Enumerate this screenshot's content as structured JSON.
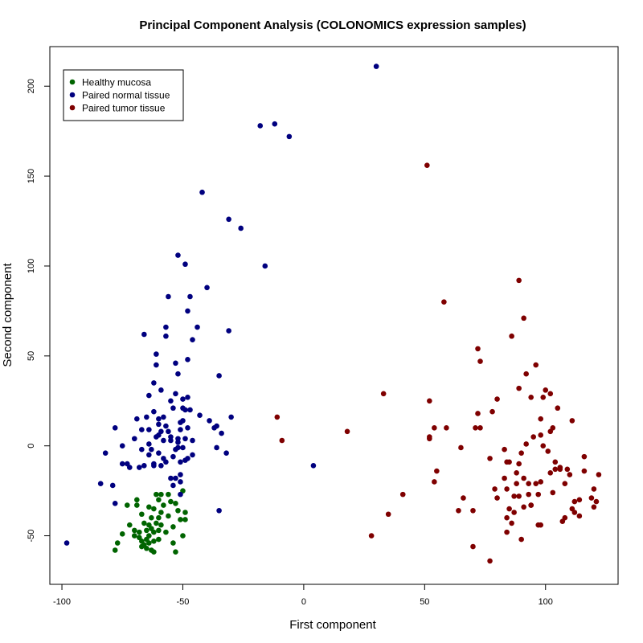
{
  "chart_data": {
    "type": "scatter",
    "title": "Principal Component Analysis (COLONOMICS expression samples)",
    "xlabel": "First component",
    "ylabel": "Second component",
    "xlim": [
      -105,
      130
    ],
    "ylim": [
      -77,
      222
    ],
    "xticks": [
      -100,
      -50,
      0,
      50,
      100
    ],
    "yticks": [
      -50,
      0,
      50,
      100,
      150,
      200
    ],
    "grid": false,
    "legend_position": "top-left",
    "series": [
      {
        "name": "Healthy mucosa",
        "color": "#006400",
        "points": [
          [
            -78,
            -58
          ],
          [
            -77,
            -54
          ],
          [
            -75,
            -49
          ],
          [
            -73,
            -33
          ],
          [
            -72,
            -44
          ],
          [
            -70,
            -47
          ],
          [
            -70,
            -50
          ],
          [
            -69,
            -33
          ],
          [
            -69,
            -30
          ],
          [
            -68,
            -48
          ],
          [
            -68,
            -51
          ],
          [
            -67,
            -53
          ],
          [
            -67,
            -56
          ],
          [
            -67,
            -38
          ],
          [
            -66,
            -43
          ],
          [
            -66,
            -55
          ],
          [
            -65,
            -47
          ],
          [
            -65,
            -52
          ],
          [
            -65,
            -57
          ],
          [
            -64,
            -34
          ],
          [
            -64,
            -44
          ],
          [
            -64,
            -50
          ],
          [
            -64,
            -54
          ],
          [
            -63,
            -40
          ],
          [
            -63,
            -46
          ],
          [
            -63,
            -58
          ],
          [
            -62,
            -35
          ],
          [
            -62,
            -48
          ],
          [
            -62,
            -53
          ],
          [
            -62,
            -59
          ],
          [
            -61,
            -27
          ],
          [
            -61,
            -43
          ],
          [
            -60,
            -30
          ],
          [
            -60,
            -40
          ],
          [
            -60,
            -47
          ],
          [
            -60,
            -52
          ],
          [
            -59,
            -27
          ],
          [
            -59,
            -37
          ],
          [
            -59,
            -44
          ],
          [
            -58,
            -33
          ],
          [
            -57,
            -48
          ],
          [
            -56,
            -39
          ],
          [
            -56,
            -27
          ],
          [
            -55,
            -31
          ],
          [
            -54,
            -54
          ],
          [
            -54,
            -45
          ],
          [
            -53,
            -32
          ],
          [
            -53,
            -59
          ],
          [
            -52,
            -36
          ],
          [
            -51,
            -41
          ],
          [
            -50,
            -25
          ],
          [
            -50,
            -50
          ],
          [
            -49,
            -37
          ],
          [
            -49,
            -41
          ]
        ]
      },
      {
        "name": "Paired normal tissue",
        "color": "#00007f",
        "points": [
          [
            -98,
            -54
          ],
          [
            -84,
            -21
          ],
          [
            -82,
            -4
          ],
          [
            -79,
            -22
          ],
          [
            -78,
            -32
          ],
          [
            -78,
            10
          ],
          [
            -75,
            -10
          ],
          [
            -75,
            0
          ],
          [
            -73,
            -10
          ],
          [
            -72,
            -12
          ],
          [
            -70,
            4
          ],
          [
            -69,
            15
          ],
          [
            -68,
            -12
          ],
          [
            -67,
            9
          ],
          [
            -67,
            -2
          ],
          [
            -66,
            -11
          ],
          [
            -66,
            62
          ],
          [
            -65,
            16
          ],
          [
            -64,
            -5
          ],
          [
            -64,
            28
          ],
          [
            -64,
            1
          ],
          [
            -64,
            9
          ],
          [
            -63,
            -2
          ],
          [
            -62,
            35
          ],
          [
            -62,
            -10
          ],
          [
            -62,
            19
          ],
          [
            -62,
            -11
          ],
          [
            -61,
            45
          ],
          [
            -61,
            51
          ],
          [
            -61,
            5
          ],
          [
            -60,
            15
          ],
          [
            -60,
            6
          ],
          [
            -60,
            12
          ],
          [
            -60,
            -4
          ],
          [
            -59,
            -11
          ],
          [
            -59,
            8
          ],
          [
            -59,
            31
          ],
          [
            -58,
            -7
          ],
          [
            -58,
            3
          ],
          [
            -58,
            16
          ],
          [
            -57,
            66
          ],
          [
            -57,
            11
          ],
          [
            -57,
            61
          ],
          [
            -57,
            -9
          ],
          [
            -56,
            83
          ],
          [
            -56,
            8
          ],
          [
            -55,
            -18
          ],
          [
            -55,
            5
          ],
          [
            -55,
            3
          ],
          [
            -55,
            25
          ],
          [
            -54,
            -22
          ],
          [
            -54,
            -6
          ],
          [
            -54,
            21
          ],
          [
            -53,
            -2
          ],
          [
            -53,
            46
          ],
          [
            -53,
            29
          ],
          [
            -53,
            -18
          ],
          [
            -52,
            40
          ],
          [
            -52,
            -1
          ],
          [
            -52,
            2
          ],
          [
            -52,
            4
          ],
          [
            -52,
            106
          ],
          [
            -51,
            -27
          ],
          [
            -51,
            9
          ],
          [
            -51,
            13
          ],
          [
            -51,
            -16
          ],
          [
            -51,
            -20
          ],
          [
            -51,
            -9
          ],
          [
            -50,
            26
          ],
          [
            -50,
            21
          ],
          [
            -50,
            14
          ],
          [
            -50,
            -1
          ],
          [
            -49,
            101
          ],
          [
            -49,
            20
          ],
          [
            -49,
            4
          ],
          [
            -49,
            -8
          ],
          [
            -48,
            48
          ],
          [
            -48,
            -7
          ],
          [
            -48,
            75
          ],
          [
            -48,
            10
          ],
          [
            -48,
            27
          ],
          [
            -47,
            83
          ],
          [
            -47,
            20
          ],
          [
            -46,
            -5
          ],
          [
            -46,
            3
          ],
          [
            -46,
            59
          ],
          [
            -44,
            66
          ],
          [
            -43,
            17
          ],
          [
            -42,
            141
          ],
          [
            -40,
            88
          ],
          [
            -39,
            14
          ],
          [
            -37,
            10
          ],
          [
            -36,
            -1
          ],
          [
            -36,
            11
          ],
          [
            -35,
            -36
          ],
          [
            -35,
            39
          ],
          [
            -34,
            7
          ],
          [
            -32,
            -4
          ],
          [
            -31,
            126
          ],
          [
            -30,
            16
          ],
          [
            -31,
            64
          ],
          [
            -26,
            121
          ],
          [
            -18,
            178
          ],
          [
            -16,
            100
          ],
          [
            -12,
            179
          ],
          [
            -6,
            172
          ],
          [
            4,
            -11
          ],
          [
            30,
            211
          ]
        ]
      },
      {
        "name": "Paired tumor tissue",
        "color": "#7f0000",
        "points": [
          [
            -11,
            16
          ],
          [
            -9,
            3
          ],
          [
            18,
            8
          ],
          [
            28,
            -50
          ],
          [
            33,
            29
          ],
          [
            35,
            -38
          ],
          [
            41,
            -27
          ],
          [
            51,
            156
          ],
          [
            52,
            25
          ],
          [
            52,
            4
          ],
          [
            52,
            5
          ],
          [
            54,
            -20
          ],
          [
            54,
            10
          ],
          [
            55,
            -14
          ],
          [
            58,
            80
          ],
          [
            59,
            10
          ],
          [
            64,
            -36
          ],
          [
            65,
            -1
          ],
          [
            66,
            -29
          ],
          [
            70,
            -36
          ],
          [
            70,
            -56
          ],
          [
            71,
            10
          ],
          [
            72,
            18
          ],
          [
            72,
            54
          ],
          [
            73,
            10
          ],
          [
            73,
            47
          ],
          [
            77,
            -64
          ],
          [
            77,
            -7
          ],
          [
            78,
            19
          ],
          [
            79,
            -24
          ],
          [
            80,
            26
          ],
          [
            80,
            -29
          ],
          [
            83,
            -2
          ],
          [
            83,
            -18
          ],
          [
            84,
            -9
          ],
          [
            84,
            -24
          ],
          [
            84,
            -48
          ],
          [
            84,
            -40
          ],
          [
            85,
            -9
          ],
          [
            85,
            -35
          ],
          [
            86,
            -43
          ],
          [
            86,
            61
          ],
          [
            87,
            -28
          ],
          [
            87,
            -37
          ],
          [
            88,
            -15
          ],
          [
            88,
            -21
          ],
          [
            89,
            -28
          ],
          [
            89,
            -10
          ],
          [
            89,
            92
          ],
          [
            89,
            32
          ],
          [
            90,
            -4
          ],
          [
            90,
            -52
          ],
          [
            91,
            71
          ],
          [
            91,
            -34
          ],
          [
            91,
            -18
          ],
          [
            92,
            40
          ],
          [
            92,
            1
          ],
          [
            93,
            -27
          ],
          [
            93,
            -21
          ],
          [
            94,
            -33
          ],
          [
            94,
            27
          ],
          [
            94,
            -33
          ],
          [
            95,
            5
          ],
          [
            96,
            -21
          ],
          [
            96,
            45
          ],
          [
            97,
            -27
          ],
          [
            97,
            -44
          ],
          [
            98,
            6
          ],
          [
            98,
            15
          ],
          [
            98,
            -20
          ],
          [
            98,
            -44
          ],
          [
            99,
            0
          ],
          [
            99,
            27
          ],
          [
            100,
            31
          ],
          [
            101,
            -3
          ],
          [
            102,
            -15
          ],
          [
            102,
            29
          ],
          [
            102,
            8
          ],
          [
            103,
            -26
          ],
          [
            103,
            10
          ],
          [
            104,
            -9
          ],
          [
            104,
            -13
          ],
          [
            105,
            21
          ],
          [
            106,
            -12
          ],
          [
            106,
            -13
          ],
          [
            107,
            -42
          ],
          [
            108,
            -21
          ],
          [
            108,
            -40
          ],
          [
            109,
            -13
          ],
          [
            110,
            -16
          ],
          [
            111,
            -35
          ],
          [
            111,
            14
          ],
          [
            112,
            -31
          ],
          [
            112,
            -37
          ],
          [
            114,
            -30
          ],
          [
            114,
            -39
          ],
          [
            116,
            -14
          ],
          [
            116,
            -6
          ],
          [
            119,
            -29
          ],
          [
            120,
            -34
          ],
          [
            120,
            -24
          ],
          [
            121,
            -31
          ],
          [
            122,
            -16
          ]
        ]
      }
    ]
  }
}
